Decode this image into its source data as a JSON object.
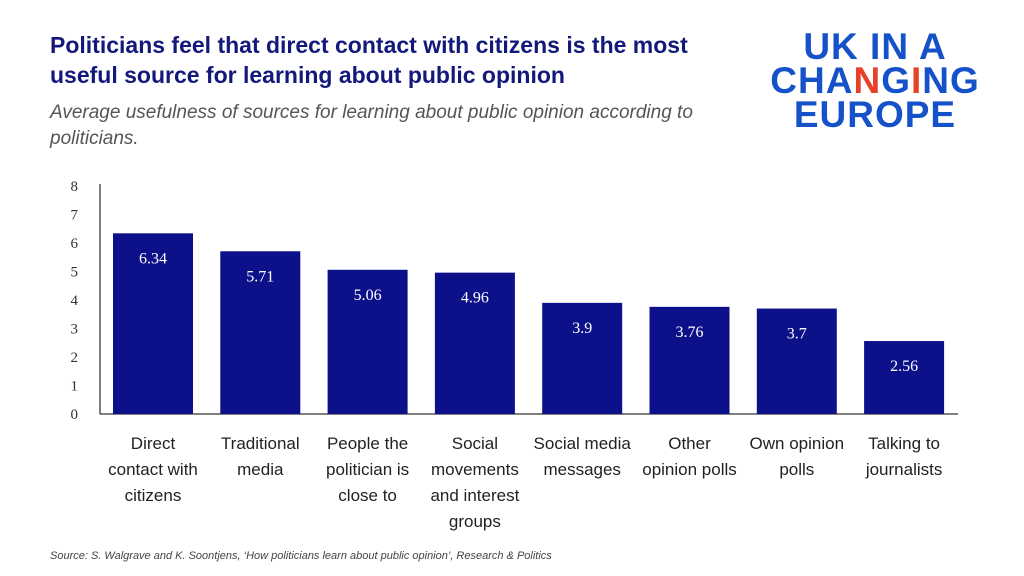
{
  "header": {
    "title": "Politicians feel that direct contact with citizens is the most useful source for learning about public opinion",
    "subtitle": "Average usefulness of sources for learning about public opinion according to politicians."
  },
  "logo": {
    "line1": "UK IN A",
    "line2": "CHANGING",
    "line3": "EUROPE",
    "text": "UK IN A CHANGING EUROPE",
    "colors": {
      "blue": "#1552c9",
      "red": "#e8412a"
    }
  },
  "source": "Source: S. Walgrave and K. Soontjens, ‘How politicians learn about public opinion’, Research & Politics",
  "chart_data": {
    "type": "bar",
    "categories": [
      [
        "Direct",
        "contact with",
        "citizens"
      ],
      [
        "Traditional",
        "media"
      ],
      [
        "People the",
        "politician is",
        "close to"
      ],
      [
        "Social",
        "movements",
        "and interest",
        "groups"
      ],
      [
        "Social media",
        "messages"
      ],
      [
        "Other",
        "opinion polls"
      ],
      [
        "Own opinion",
        "polls"
      ],
      [
        "Talking to",
        "journalists"
      ]
    ],
    "values": [
      6.34,
      5.71,
      5.06,
      4.96,
      3.9,
      3.76,
      3.7,
      2.56
    ],
    "value_labels": [
      "6.34",
      "5.71",
      "5.06",
      "4.96",
      "3.9",
      "3.76",
      "3.7",
      "2.56"
    ],
    "ylim": [
      0,
      8
    ],
    "yticks": [
      0,
      1,
      2,
      3,
      4,
      5,
      6,
      7,
      8
    ],
    "grid": false,
    "bar_color": "#0c118a"
  }
}
